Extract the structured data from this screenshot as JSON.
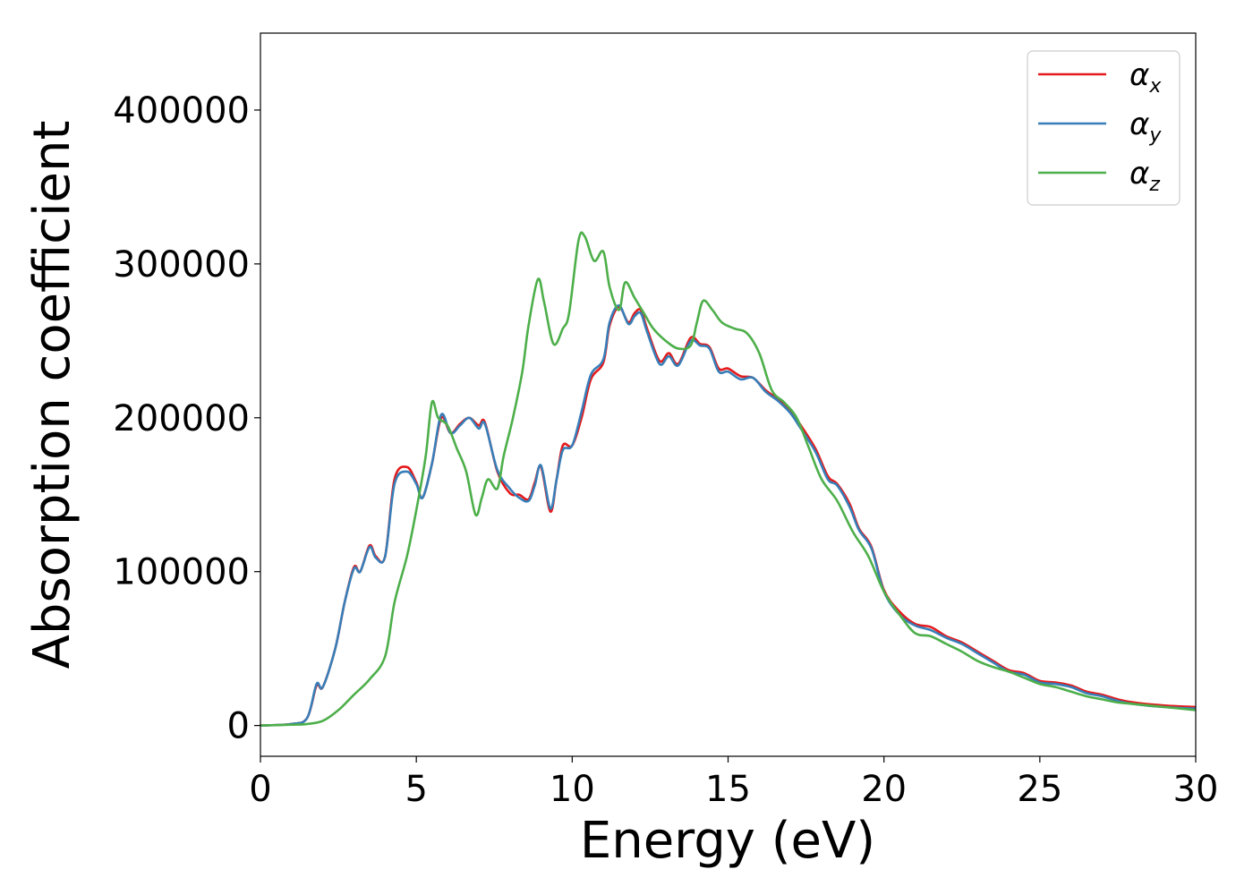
{
  "chart_data": {
    "type": "line",
    "title": "",
    "xlabel": "Energy (eV)",
    "ylabel": "Absorption coefficient",
    "xlim": [
      0,
      30
    ],
    "ylim": [
      -20000,
      450000
    ],
    "xticks": [
      0,
      5,
      10,
      15,
      20,
      25,
      30
    ],
    "yticks": [
      0,
      100000,
      200000,
      300000,
      400000
    ],
    "grid": false,
    "legend_position": "top-right",
    "series": [
      {
        "name": "αx",
        "symbol": "α",
        "subscript": "x",
        "color": "#e41a1c",
        "points": [
          [
            0,
            0
          ],
          [
            1,
            1000
          ],
          [
            1.5,
            5000
          ],
          [
            1.8,
            26000
          ],
          [
            2.0,
            25000
          ],
          [
            2.4,
            50000
          ],
          [
            2.7,
            80000
          ],
          [
            3.0,
            103000
          ],
          [
            3.2,
            100000
          ],
          [
            3.5,
            117000
          ],
          [
            3.7,
            110000
          ],
          [
            4.0,
            110000
          ],
          [
            4.3,
            160000
          ],
          [
            4.7,
            168000
          ],
          [
            5.0,
            158000
          ],
          [
            5.2,
            148000
          ],
          [
            5.5,
            170000
          ],
          [
            5.8,
            200000
          ],
          [
            6.1,
            190000
          ],
          [
            6.4,
            196000
          ],
          [
            6.7,
            200000
          ],
          [
            7.0,
            195000
          ],
          [
            7.2,
            197000
          ],
          [
            7.6,
            165000
          ],
          [
            8.0,
            151000
          ],
          [
            8.3,
            150000
          ],
          [
            8.6,
            147000
          ],
          [
            8.8,
            158000
          ],
          [
            9.0,
            168000
          ],
          [
            9.3,
            139000
          ],
          [
            9.5,
            160000
          ],
          [
            9.7,
            182000
          ],
          [
            10.0,
            182000
          ],
          [
            10.3,
            200000
          ],
          [
            10.6,
            225000
          ],
          [
            11.0,
            236000
          ],
          [
            11.2,
            260000
          ],
          [
            11.5,
            272000
          ],
          [
            11.8,
            262000
          ],
          [
            12.0,
            268000
          ],
          [
            12.2,
            270000
          ],
          [
            12.4,
            258000
          ],
          [
            12.8,
            237000
          ],
          [
            13.1,
            242000
          ],
          [
            13.4,
            235000
          ],
          [
            13.8,
            252000
          ],
          [
            14.1,
            248000
          ],
          [
            14.4,
            246000
          ],
          [
            14.7,
            232000
          ],
          [
            15.0,
            232000
          ],
          [
            15.4,
            227000
          ],
          [
            15.8,
            226000
          ],
          [
            16.2,
            218000
          ],
          [
            16.6,
            212000
          ],
          [
            17.0,
            204000
          ],
          [
            17.3,
            196000
          ],
          [
            17.8,
            180000
          ],
          [
            18.2,
            162000
          ],
          [
            18.5,
            157000
          ],
          [
            18.9,
            144000
          ],
          [
            19.2,
            128000
          ],
          [
            19.6,
            116000
          ],
          [
            20.0,
            88000
          ],
          [
            20.5,
            74000
          ],
          [
            21.0,
            66000
          ],
          [
            21.5,
            64000
          ],
          [
            22.0,
            58000
          ],
          [
            22.5,
            54000
          ],
          [
            23.0,
            48000
          ],
          [
            23.5,
            42000
          ],
          [
            24.0,
            36000
          ],
          [
            24.5,
            34000
          ],
          [
            25.0,
            29000
          ],
          [
            25.5,
            28000
          ],
          [
            26.0,
            26000
          ],
          [
            26.5,
            22000
          ],
          [
            27.0,
            20000
          ],
          [
            27.5,
            17000
          ],
          [
            28.0,
            15000
          ],
          [
            29.0,
            13000
          ],
          [
            30.0,
            12000
          ]
        ]
      },
      {
        "name": "αy",
        "symbol": "α",
        "subscript": "y",
        "color": "#377eb8",
        "points": [
          [
            0,
            0
          ],
          [
            1,
            1000
          ],
          [
            1.5,
            5000
          ],
          [
            1.8,
            27000
          ],
          [
            2.0,
            25000
          ],
          [
            2.4,
            50000
          ],
          [
            2.7,
            80000
          ],
          [
            3.0,
            102000
          ],
          [
            3.2,
            100000
          ],
          [
            3.5,
            116000
          ],
          [
            3.7,
            109000
          ],
          [
            4.0,
            110000
          ],
          [
            4.3,
            157000
          ],
          [
            4.7,
            165000
          ],
          [
            5.0,
            157000
          ],
          [
            5.2,
            148000
          ],
          [
            5.5,
            170000
          ],
          [
            5.8,
            202000
          ],
          [
            6.1,
            190000
          ],
          [
            6.4,
            195000
          ],
          [
            6.7,
            200000
          ],
          [
            7.0,
            193000
          ],
          [
            7.2,
            196000
          ],
          [
            7.6,
            166000
          ],
          [
            8.0,
            154000
          ],
          [
            8.3,
            148000
          ],
          [
            8.6,
            146000
          ],
          [
            8.8,
            156000
          ],
          [
            9.0,
            169000
          ],
          [
            9.3,
            141000
          ],
          [
            9.5,
            160000
          ],
          [
            9.7,
            179000
          ],
          [
            10.0,
            182000
          ],
          [
            10.3,
            204000
          ],
          [
            10.6,
            228000
          ],
          [
            11.0,
            238000
          ],
          [
            11.2,
            262000
          ],
          [
            11.5,
            273000
          ],
          [
            11.8,
            261000
          ],
          [
            12.0,
            266000
          ],
          [
            12.2,
            268000
          ],
          [
            12.4,
            256000
          ],
          [
            12.8,
            235000
          ],
          [
            13.1,
            240000
          ],
          [
            13.4,
            234000
          ],
          [
            13.8,
            250000
          ],
          [
            14.1,
            247000
          ],
          [
            14.4,
            245000
          ],
          [
            14.7,
            230000
          ],
          [
            15.0,
            230000
          ],
          [
            15.4,
            225000
          ],
          [
            15.8,
            226000
          ],
          [
            16.2,
            217000
          ],
          [
            16.6,
            211000
          ],
          [
            17.0,
            203000
          ],
          [
            17.3,
            194000
          ],
          [
            17.8,
            178000
          ],
          [
            18.2,
            160000
          ],
          [
            18.5,
            156000
          ],
          [
            18.9,
            142000
          ],
          [
            19.2,
            127000
          ],
          [
            19.6,
            115000
          ],
          [
            20.0,
            87000
          ],
          [
            20.5,
            72000
          ],
          [
            21.0,
            65000
          ],
          [
            21.5,
            62000
          ],
          [
            22.0,
            57000
          ],
          [
            22.5,
            53000
          ],
          [
            23.0,
            47000
          ],
          [
            23.5,
            41000
          ],
          [
            24.0,
            35000
          ],
          [
            24.5,
            33000
          ],
          [
            25.0,
            28000
          ],
          [
            25.5,
            27000
          ],
          [
            26.0,
            25000
          ],
          [
            26.5,
            21000
          ],
          [
            27.0,
            19000
          ],
          [
            27.5,
            16000
          ],
          [
            28.0,
            14000
          ],
          [
            29.0,
            12000
          ],
          [
            30.0,
            11000
          ]
        ]
      },
      {
        "name": "αz",
        "symbol": "α",
        "subscript": "z",
        "color": "#4daf4a",
        "points": [
          [
            0,
            0
          ],
          [
            1,
            500
          ],
          [
            1.5,
            1000
          ],
          [
            2.0,
            3000
          ],
          [
            2.5,
            10000
          ],
          [
            3.0,
            20000
          ],
          [
            3.5,
            30000
          ],
          [
            4.0,
            45000
          ],
          [
            4.3,
            80000
          ],
          [
            4.7,
            110000
          ],
          [
            5.0,
            140000
          ],
          [
            5.3,
            175000
          ],
          [
            5.5,
            210000
          ],
          [
            5.7,
            200000
          ],
          [
            6.0,
            195000
          ],
          [
            6.3,
            180000
          ],
          [
            6.6,
            165000
          ],
          [
            6.9,
            137000
          ],
          [
            7.1,
            148000
          ],
          [
            7.3,
            160000
          ],
          [
            7.6,
            154000
          ],
          [
            7.8,
            175000
          ],
          [
            8.1,
            200000
          ],
          [
            8.4,
            230000
          ],
          [
            8.6,
            260000
          ],
          [
            8.9,
            290000
          ],
          [
            9.1,
            275000
          ],
          [
            9.4,
            248000
          ],
          [
            9.7,
            258000
          ],
          [
            9.9,
            268000
          ],
          [
            10.2,
            315000
          ],
          [
            10.4,
            318000
          ],
          [
            10.7,
            302000
          ],
          [
            11.0,
            308000
          ],
          [
            11.2,
            285000
          ],
          [
            11.5,
            270000
          ],
          [
            11.7,
            288000
          ],
          [
            12.0,
            278000
          ],
          [
            12.3,
            268000
          ],
          [
            12.6,
            258000
          ],
          [
            13.0,
            250000
          ],
          [
            13.4,
            245000
          ],
          [
            13.8,
            247000
          ],
          [
            14.0,
            262000
          ],
          [
            14.2,
            276000
          ],
          [
            14.5,
            270000
          ],
          [
            14.8,
            262000
          ],
          [
            15.2,
            258000
          ],
          [
            15.6,
            255000
          ],
          [
            16.0,
            242000
          ],
          [
            16.4,
            218000
          ],
          [
            16.8,
            210000
          ],
          [
            17.2,
            200000
          ],
          [
            17.6,
            180000
          ],
          [
            18.0,
            160000
          ],
          [
            18.5,
            146000
          ],
          [
            19.0,
            126000
          ],
          [
            19.5,
            110000
          ],
          [
            20.0,
            87000
          ],
          [
            20.5,
            72000
          ],
          [
            21.0,
            60000
          ],
          [
            21.5,
            58000
          ],
          [
            22.0,
            53000
          ],
          [
            22.5,
            48000
          ],
          [
            23.0,
            42000
          ],
          [
            23.5,
            38000
          ],
          [
            24.0,
            35000
          ],
          [
            24.5,
            31000
          ],
          [
            25.0,
            27000
          ],
          [
            25.5,
            25000
          ],
          [
            26.0,
            22000
          ],
          [
            26.5,
            19000
          ],
          [
            27.0,
            17000
          ],
          [
            27.5,
            15000
          ],
          [
            28.0,
            14000
          ],
          [
            29.0,
            12000
          ],
          [
            30.0,
            10000
          ]
        ]
      }
    ]
  }
}
